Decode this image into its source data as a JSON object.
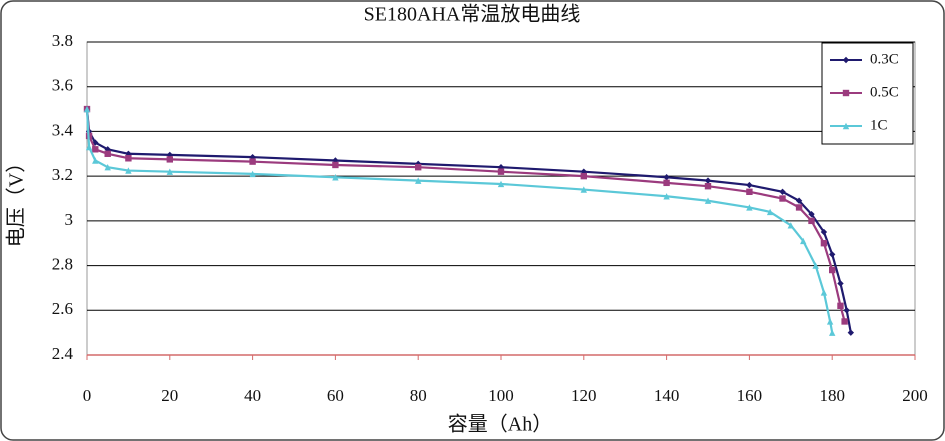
{
  "chart_data": {
    "type": "line",
    "title": "SE180AHA常温放电曲线",
    "x_label": "容量（Ah）",
    "y_label": "电压（V）",
    "xlim": [
      0,
      200
    ],
    "xticks": [
      0,
      20,
      40,
      60,
      80,
      100,
      120,
      140,
      160,
      180,
      200
    ],
    "ylim": [
      2.4,
      3.8
    ],
    "yticks": [
      2.4,
      2.6,
      2.8,
      3,
      3.2,
      3.4,
      3.6,
      3.8
    ],
    "grid": true,
    "legend": "top-right",
    "series": [
      {
        "name": "0.3C",
        "color": "#1f1a6e",
        "marker": "diamond",
        "x": [
          0,
          0.5,
          2,
          5,
          10,
          20,
          40,
          60,
          80,
          100,
          120,
          140,
          150,
          160,
          168,
          172,
          175,
          178,
          180,
          182,
          183.5,
          184.5
        ],
        "values": [
          3.5,
          3.4,
          3.35,
          3.32,
          3.3,
          3.295,
          3.285,
          3.27,
          3.255,
          3.24,
          3.22,
          3.195,
          3.18,
          3.16,
          3.13,
          3.09,
          3.03,
          2.95,
          2.85,
          2.72,
          2.6,
          2.5
        ]
      },
      {
        "name": "0.5C",
        "color": "#9b3b7e",
        "marker": "square",
        "x": [
          0,
          0.5,
          2,
          5,
          10,
          20,
          40,
          60,
          80,
          100,
          120,
          140,
          150,
          160,
          168,
          172,
          175,
          178,
          180,
          182,
          183
        ],
        "values": [
          3.5,
          3.38,
          3.32,
          3.3,
          3.28,
          3.275,
          3.265,
          3.25,
          3.24,
          3.22,
          3.2,
          3.17,
          3.155,
          3.13,
          3.1,
          3.06,
          3.0,
          2.9,
          2.78,
          2.62,
          2.55
        ]
      },
      {
        "name": "1C",
        "color": "#5bc8d8",
        "marker": "triangle",
        "x": [
          0,
          0.5,
          2,
          5,
          10,
          20,
          40,
          60,
          80,
          100,
          120,
          140,
          150,
          160,
          165,
          170,
          173,
          176,
          178,
          179.5,
          180
        ],
        "values": [
          3.5,
          3.33,
          3.27,
          3.24,
          3.225,
          3.22,
          3.21,
          3.195,
          3.18,
          3.165,
          3.14,
          3.11,
          3.09,
          3.06,
          3.04,
          2.98,
          2.91,
          2.8,
          2.68,
          2.55,
          2.5
        ]
      }
    ]
  }
}
